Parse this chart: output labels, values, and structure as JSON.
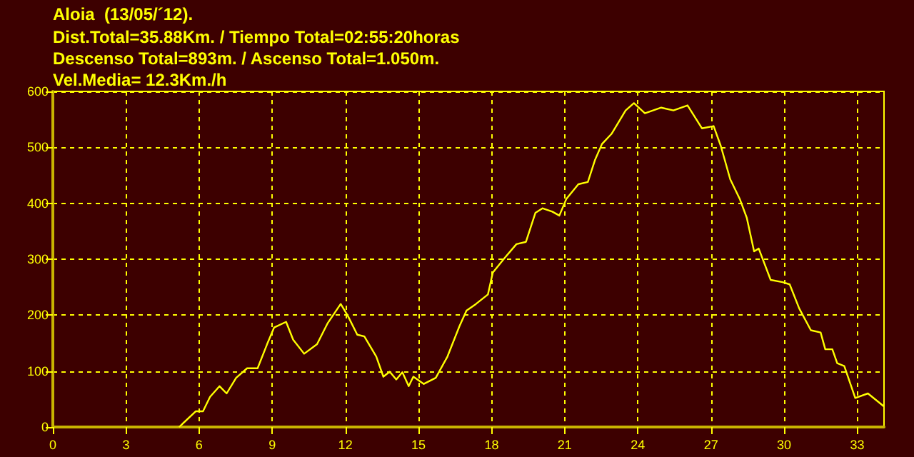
{
  "chart_data": {
    "type": "line",
    "title": "Aloia  (13/05/´12).",
    "annotations": [
      "Dist.Total=35.88Km. / Tiempo Total=02:55:20horas",
      "Descenso Total=893m. / Ascenso Total=1.050m.",
      "Vel.Media= 12.3Km./h"
    ],
    "x": [
      5.18,
      5.86,
      6.16,
      6.45,
      6.84,
      7.13,
      7.52,
      7.97,
      8.4,
      8.79,
      9.08,
      9.57,
      9.86,
      10.31,
      10.84,
      11.28,
      11.81,
      12.1,
      12.49,
      12.78,
      13.27,
      13.56,
      13.82,
      14.09,
      14.34,
      14.6,
      14.79,
      15.22,
      15.71,
      16.19,
      16.68,
      16.97,
      17.36,
      17.85,
      18.05,
      18.53,
      19.02,
      19.41,
      19.8,
      20.09,
      20.49,
      20.78,
      21.07,
      21.56,
      21.95,
      22.24,
      22.53,
      22.92,
      23.5,
      23.84,
      24.29,
      24.96,
      25.46,
      26.04,
      26.63,
      27.11,
      27.4,
      27.79,
      28.18,
      28.47,
      28.77,
      28.96,
      29.45,
      29.94,
      30.23,
      30.62,
      31.1,
      31.5,
      31.69,
      31.98,
      32.18,
      32.47,
      32.92,
      33.44,
      34.09
    ],
    "series": [
      {
        "color": "#ffff00",
        "values": [
          0,
          28,
          28,
          54,
          73,
          60,
          88,
          105,
          105,
          148,
          178,
          188,
          156,
          131,
          148,
          186,
          220,
          199,
          165,
          162,
          126,
          90,
          99,
          85,
          98,
          73,
          90,
          77,
          88,
          126,
          180,
          208,
          220,
          237,
          276,
          302,
          327,
          331,
          383,
          391,
          385,
          378,
          408,
          434,
          438,
          477,
          506,
          524,
          566,
          579,
          561,
          571,
          566,
          575,
          534,
          538,
          503,
          443,
          408,
          374,
          314,
          319,
          263,
          259,
          255,
          212,
          173,
          169,
          139,
          139,
          114,
          109,
          52,
          60,
          37
        ]
      }
    ],
    "xlim": [
      0,
      34.1
    ],
    "xticks": [
      0,
      3,
      6,
      9,
      12,
      15,
      18,
      21,
      24,
      27,
      30,
      33
    ],
    "ylim": [
      0,
      600
    ],
    "yticks": [
      0,
      100,
      200,
      300,
      400,
      500,
      600
    ],
    "grid": true,
    "line_style": "solid",
    "marker": "none"
  }
}
